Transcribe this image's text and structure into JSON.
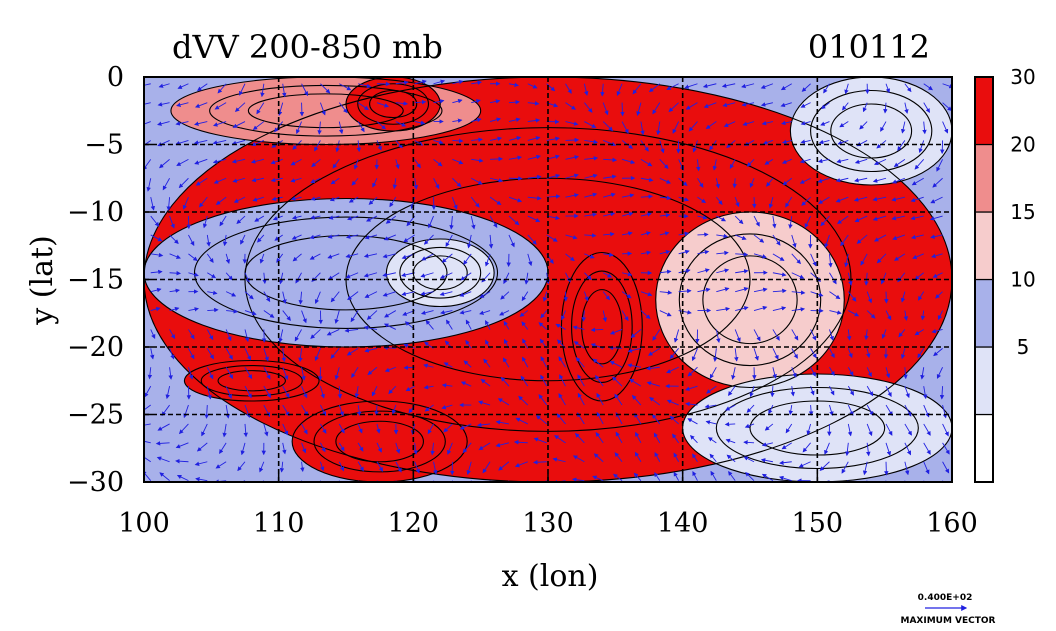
{
  "chart_data": {
    "type": "heatmap",
    "title": "dVV 200-850 mb",
    "date_label": "010112",
    "xlabel": "x (lon)",
    "ylabel": "y (lat)",
    "xlim": [
      100,
      160
    ],
    "ylim": [
      -30,
      0
    ],
    "x_ticks": [
      100,
      110,
      120,
      130,
      140,
      150,
      160
    ],
    "y_ticks": [
      0,
      -5,
      -10,
      -15,
      -20,
      -25,
      -30
    ],
    "x_tick_labels": [
      "100",
      "110",
      "120",
      "130",
      "140",
      "150",
      "160"
    ],
    "y_tick_labels": [
      "0",
      "−5",
      "−10",
      "−15",
      "−20",
      "−25",
      "−30"
    ],
    "grid": true,
    "colorbar": {
      "levels": [
        {
          "label": "",
          "color": "#ffffff"
        },
        {
          "label": "5",
          "color": "#dfe3f7"
        },
        {
          "label": "10",
          "color": "#a8b1ea"
        },
        {
          "label": "15",
          "color": "#f6cccc"
        },
        {
          "label": "20",
          "color": "#ef8d8d"
        },
        {
          "label": "30",
          "color": "#e90d0d"
        }
      ]
    },
    "regions": [
      {
        "level": 5,
        "lon": [
          100,
          160
        ],
        "lat": [
          -30,
          0
        ]
      },
      {
        "level": 2,
        "lon": [
          100,
          130
        ],
        "lat": [
          -20,
          -9
        ]
      },
      {
        "level": 1,
        "lon": [
          118,
          126
        ],
        "lat": [
          -17,
          -12
        ]
      },
      {
        "level": 4,
        "lon": [
          102,
          125
        ],
        "lat": [
          -5,
          0
        ]
      },
      {
        "level": 5,
        "lon": [
          115,
          122
        ],
        "lat": [
          -4,
          0
        ]
      },
      {
        "level": 5,
        "lon": [
          103,
          113
        ],
        "lat": [
          -24,
          -21
        ]
      },
      {
        "level": 5,
        "lon": [
          111,
          124
        ],
        "lat": [
          -30,
          -24
        ]
      },
      {
        "level": 5,
        "lon": [
          131,
          137
        ],
        "lat": [
          -24,
          -13
        ]
      },
      {
        "level": 3,
        "lon": [
          138,
          152
        ],
        "lat": [
          -23,
          -10
        ]
      },
      {
        "level": 1,
        "lon": [
          140,
          160
        ],
        "lat": [
          -30,
          -22
        ]
      },
      {
        "level": 1,
        "lon": [
          148,
          160
        ],
        "lat": [
          -8,
          0
        ]
      }
    ],
    "vector_field": {
      "description": "wind shear vectors, dense regular grid",
      "max_vector_label": "0.400E+02",
      "max_vector_caption": "MAXIMUM VECTOR",
      "color": "#2020e0"
    }
  }
}
